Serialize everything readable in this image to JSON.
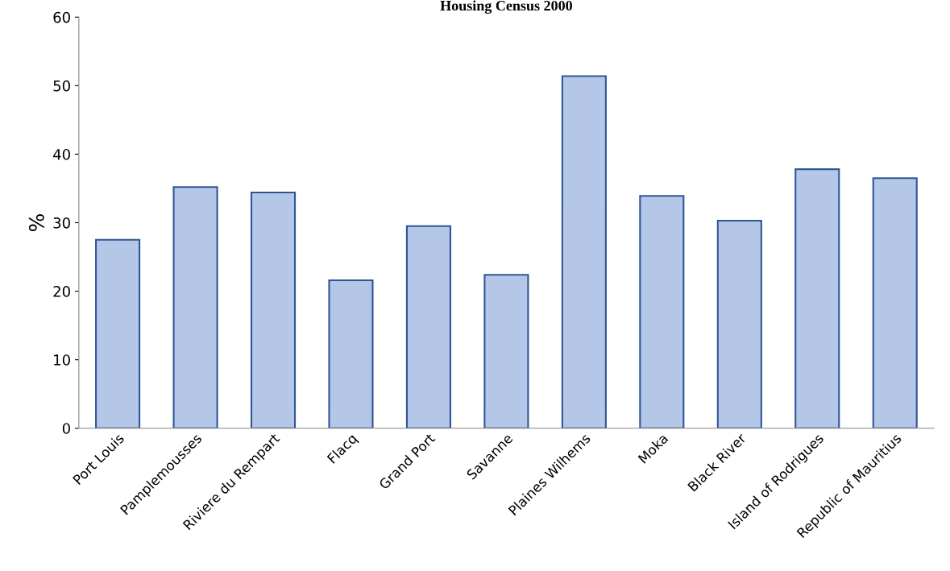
{
  "chart_data": {
    "type": "bar",
    "title": "Housing Census 2000",
    "ylabel": "%",
    "categories": [
      "Port Louis",
      "Pamplemousses",
      "Riviere du Rempart",
      "Flacq",
      "Grand Port",
      "Savanne",
      "Plaines Wilhems",
      "Moka",
      "Black River",
      "Island of Rodrigues",
      "Republic of Mauritius"
    ],
    "values": [
      27.5,
      35.2,
      34.4,
      21.6,
      29.5,
      22.4,
      51.4,
      33.9,
      30.3,
      37.8,
      36.5
    ],
    "color": "#b4c7e7",
    "ylim": [
      0,
      60
    ],
    "yticks": [
      0,
      10,
      20,
      30,
      40,
      50,
      60
    ],
    "grid": false,
    "legend": false
  }
}
